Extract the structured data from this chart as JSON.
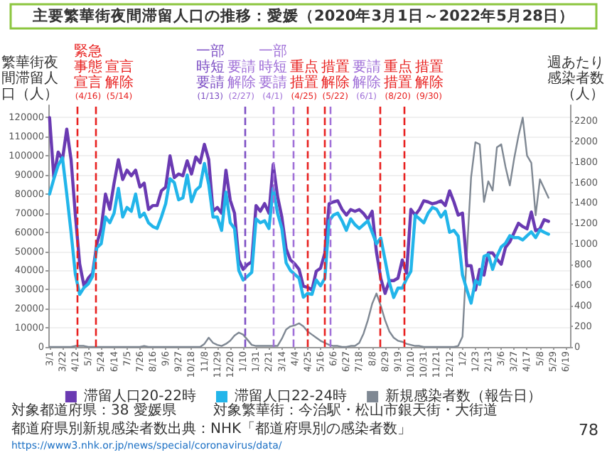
{
  "chart_data": {
    "type": "line",
    "title": "主要繁華街夜間滞留人口の推移：愛媛（2020年3月1日～2022年5月28日）",
    "ylabel": "繁華街夜間滞留人口（人）",
    "y2label": "週あたり感染者数（人）",
    "x": [
      "2020-03-01",
      "2020-03-08",
      "2020-03-15",
      "2020-03-22",
      "2020-03-29",
      "2020-04-05",
      "2020-04-12",
      "2020-04-19",
      "2020-04-26",
      "2020-05-03",
      "2020-05-10",
      "2020-05-17",
      "2020-05-24",
      "2020-05-31",
      "2020-06-07",
      "2020-06-14",
      "2020-06-21",
      "2020-06-28",
      "2020-07-05",
      "2020-07-12",
      "2020-07-19",
      "2020-07-26",
      "2020-08-02",
      "2020-08-09",
      "2020-08-16",
      "2020-08-23",
      "2020-08-30",
      "2020-09-06",
      "2020-09-13",
      "2020-09-20",
      "2020-09-27",
      "2020-10-04",
      "2020-10-11",
      "2020-10-18",
      "2020-10-25",
      "2020-11-01",
      "2020-11-08",
      "2020-11-15",
      "2020-11-22",
      "2020-11-29",
      "2020-12-06",
      "2020-12-13",
      "2020-12-20",
      "2020-12-27",
      "2021-01-03",
      "2021-01-10",
      "2021-01-17",
      "2021-01-24",
      "2021-01-31",
      "2021-02-07",
      "2021-02-14",
      "2021-02-21",
      "2021-02-28",
      "2021-03-07",
      "2021-03-14",
      "2021-03-21",
      "2021-03-28",
      "2021-04-04",
      "2021-04-11",
      "2021-04-18",
      "2021-04-25",
      "2021-05-02",
      "2021-05-09",
      "2021-05-16",
      "2021-05-23",
      "2021-05-30",
      "2021-06-06",
      "2021-06-13",
      "2021-06-20",
      "2021-06-27",
      "2021-07-04",
      "2021-07-11",
      "2021-07-18",
      "2021-07-25",
      "2021-08-01",
      "2021-08-08",
      "2021-08-15",
      "2021-08-22",
      "2021-08-29",
      "2021-09-05",
      "2021-09-12",
      "2021-09-19",
      "2021-09-26",
      "2021-10-03",
      "2021-10-10",
      "2021-10-17",
      "2021-10-24",
      "2021-10-31",
      "2021-11-07",
      "2021-11-14",
      "2021-11-21",
      "2021-11-28",
      "2021-12-05",
      "2021-12-12",
      "2021-12-19",
      "2021-12-26",
      "2022-01-02",
      "2022-01-09",
      "2022-01-16",
      "2022-01-23",
      "2022-01-30",
      "2022-02-06",
      "2022-02-13",
      "2022-02-20",
      "2022-02-27",
      "2022-03-06",
      "2022-03-13",
      "2022-03-20",
      "2022-03-27",
      "2022-04-03",
      "2022-04-10",
      "2022-04-17",
      "2022-04-24",
      "2022-05-01",
      "2022-05-08",
      "2022-05-15",
      "2022-05-22"
    ],
    "series": [
      {
        "name": "滞留人口20-22時",
        "color": "#6a3ab2",
        "values": [
          120000,
          88600,
          102000,
          98000,
          114000,
          98000,
          69000,
          43500,
          32000,
          36000,
          38600,
          54000,
          62000,
          80000,
          72000,
          85700,
          98000,
          87600,
          92500,
          89600,
          92500,
          83700,
          85700,
          72000,
          74000,
          74000,
          81700,
          83700,
          100000,
          88600,
          90500,
          89600,
          97400,
          90500,
          99400,
          96400,
          106000,
          98000,
          71000,
          73000,
          70000,
          92500,
          76800,
          70000,
          45500,
          40600,
          43100,
          44500,
          74000,
          71000,
          75000,
          70000,
          95500,
          78800,
          68000,
          51400,
          45500,
          43500,
          40600,
          31800,
          31200,
          29800,
          39600,
          41200,
          49200,
          75000,
          75900,
          76500,
          72000,
          69000,
          71900,
          71000,
          71900,
          69800,
          66800,
          71000,
          49600,
          35900,
          28000,
          34700,
          34700,
          36000,
          45500,
          38600,
          72000,
          69000,
          72000,
          76500,
          75900,
          74900,
          75500,
          76500,
          74000,
          81700,
          75900,
          69000,
          70000,
          42500,
          42500,
          29800,
          40600,
          37600,
          49200,
          49200,
          46000,
          43300,
          52100,
          55000,
          59800,
          64700,
          63000,
          61800,
          70600,
          60800,
          61800,
          66600,
          65700
        ]
      },
      {
        "name": "滞留人口22-24時",
        "color": "#22b5ea",
        "values": [
          80000,
          88000,
          95000,
          99000,
          80000,
          60000,
          38000,
          27500,
          31000,
          33000,
          37000,
          52000,
          54000,
          68000,
          65000,
          70000,
          83000,
          68000,
          73000,
          71000,
          80000,
          68000,
          70000,
          65000,
          63000,
          62000,
          68000,
          75000,
          88000,
          86000,
          77000,
          78000,
          90000,
          76000,
          82000,
          84000,
          96000,
          85000,
          68000,
          68000,
          61000,
          81000,
          65000,
          62000,
          40000,
          35000,
          37000,
          39000,
          67000,
          65000,
          66000,
          62000,
          83000,
          70000,
          62000,
          44000,
          40000,
          38000,
          36000,
          26000,
          28000,
          27500,
          35000,
          32000,
          36000,
          66000,
          69000,
          70000,
          66000,
          61000,
          67000,
          64000,
          62000,
          64000,
          66000,
          60000,
          54000,
          57000,
          45500,
          33700,
          25900,
          30800,
          30800,
          35700,
          39600,
          69000,
          67000,
          65000,
          70000,
          73000,
          72000,
          68000,
          71000,
          60000,
          61000,
          58000,
          37600,
          30000,
          22900,
          34700,
          32700,
          47400,
          48400,
          40600,
          47400,
          52300,
          54300,
          58200,
          57200,
          57200,
          56000,
          58200,
          60200,
          57200,
          61200,
          60000,
          59000
        ]
      },
      {
        "name": "新規感染者数（報告日）",
        "color": "#7f8893",
        "axis": "y2",
        "values": [
          0,
          0,
          0,
          0,
          0,
          0,
          10,
          10,
          10,
          0,
          0,
          0,
          0,
          0,
          0,
          0,
          0,
          0,
          0,
          0,
          0,
          0,
          10,
          0,
          0,
          0,
          0,
          0,
          0,
          0,
          0,
          0,
          0,
          0,
          0,
          0,
          30,
          90,
          40,
          20,
          10,
          30,
          60,
          110,
          140,
          120,
          70,
          20,
          10,
          10,
          10,
          10,
          10,
          10,
          80,
          170,
          200,
          210,
          230,
          200,
          150,
          120,
          90,
          60,
          40,
          20,
          10,
          10,
          0,
          0,
          10,
          10,
          40,
          130,
          260,
          420,
          520,
          400,
          260,
          150,
          90,
          60,
          50,
          30,
          20,
          10,
          10,
          0,
          0,
          0,
          0,
          0,
          0,
          0,
          0,
          10,
          100,
          900,
          1650,
          1990,
          1970,
          1410,
          1610,
          1520,
          1940,
          1970,
          1750,
          1570,
          1830,
          2050,
          2230,
          1860,
          1790,
          1280,
          1630,
          1540,
          1450
        ]
      }
    ],
    "xlim": [
      "2020-02-28",
      "2022-06-26"
    ],
    "xticks": [
      {
        "value": "2020-03-01",
        "label": "3/1"
      },
      {
        "value": "2020-03-22",
        "label": "3/22"
      },
      {
        "value": "2020-04-12",
        "label": "4/12"
      },
      {
        "value": "2020-05-03",
        "label": "5/3"
      },
      {
        "value": "2020-05-24",
        "label": "5/24"
      },
      {
        "value": "2020-06-14",
        "label": "6/14"
      },
      {
        "value": "2020-07-05",
        "label": "7/5"
      },
      {
        "value": "2020-07-26",
        "label": "7/26"
      },
      {
        "value": "2020-08-16",
        "label": "8/16"
      },
      {
        "value": "2020-09-06",
        "label": "9/6"
      },
      {
        "value": "2020-09-27",
        "label": "9/27"
      },
      {
        "value": "2020-10-18",
        "label": "10/18"
      },
      {
        "value": "2020-11-08",
        "label": "11/8"
      },
      {
        "value": "2020-11-29",
        "label": "11/29"
      },
      {
        "value": "2020-12-20",
        "label": "12/20"
      },
      {
        "value": "2021-01-10",
        "label": "1/10"
      },
      {
        "value": "2021-01-31",
        "label": "1/31"
      },
      {
        "value": "2021-02-21",
        "label": "2/21"
      },
      {
        "value": "2021-03-14",
        "label": "3/14"
      },
      {
        "value": "2021-04-04",
        "label": "4/4"
      },
      {
        "value": "2021-04-25",
        "label": "4/25"
      },
      {
        "value": "2021-05-16",
        "label": "5/16"
      },
      {
        "value": "2021-06-06",
        "label": "6/6"
      },
      {
        "value": "2021-06-27",
        "label": "6/27"
      },
      {
        "value": "2021-07-18",
        "label": "7/18"
      },
      {
        "value": "2021-08-08",
        "label": "8/8"
      },
      {
        "value": "2021-08-29",
        "label": "8/29"
      },
      {
        "value": "2021-09-19",
        "label": "9/19"
      },
      {
        "value": "2021-10-10",
        "label": "10/10"
      },
      {
        "value": "2021-10-31",
        "label": "10/31"
      },
      {
        "value": "2021-11-21",
        "label": "11/21"
      },
      {
        "value": "2021-12-12",
        "label": "12/12"
      },
      {
        "value": "2022-01-02",
        "label": "1/2"
      },
      {
        "value": "2022-01-23",
        "label": "1/23"
      },
      {
        "value": "2022-02-13",
        "label": "2/13"
      },
      {
        "value": "2022-03-06",
        "label": "3/6"
      },
      {
        "value": "2022-03-27",
        "label": "3/27"
      },
      {
        "value": "2022-04-17",
        "label": "4/17"
      },
      {
        "value": "2022-05-08",
        "label": "5/8"
      },
      {
        "value": "2022-05-29",
        "label": "5/29"
      },
      {
        "value": "2022-06-19",
        "label": "6/19"
      }
    ],
    "ylim": [
      0,
      126500
    ],
    "yticks": [
      0,
      10000,
      20000,
      30000,
      40000,
      50000,
      60000,
      70000,
      80000,
      90000,
      100000,
      110000,
      120000
    ],
    "y2lim": [
      0,
      2350
    ],
    "y2ticks": [
      0,
      200,
      400,
      600,
      800,
      1000,
      1200,
      1400,
      1600,
      1800,
      2000,
      2200
    ],
    "ref_lines": [
      {
        "axis": "x",
        "value": "2020-04-16",
        "label": "緊急事態宣言(4/16)",
        "color": "#e8201f",
        "line_style": "dashed"
      },
      {
        "axis": "x",
        "value": "2020-05-14",
        "label": "宣言解除(5/14)",
        "color": "#e8201f",
        "line_style": "dashed"
      },
      {
        "axis": "x",
        "value": "2021-01-13",
        "label": "一部時短要請(1/13)",
        "color": "#7d4fc4",
        "line_style": "dashed"
      },
      {
        "axis": "x",
        "value": "2021-02-27",
        "label": "要請解除(2/27)",
        "color": "#a070d8",
        "line_style": "dashed"
      },
      {
        "axis": "x",
        "value": "2021-04-01",
        "label": "一部時短要請(4/1)",
        "color": "#a070d8",
        "line_style": "dashed"
      },
      {
        "axis": "x",
        "value": "2021-04-25",
        "label": "重点措置(4/25)",
        "color": "#e8201f",
        "line_style": "dashed"
      },
      {
        "axis": "x",
        "value": "2021-05-22",
        "label": "措置解除(5/22)",
        "color": "#e8201f",
        "line_style": "dashed"
      },
      {
        "axis": "x",
        "value": "2021-06-01",
        "label": "要請解除(6/1)",
        "color": "#a070d8",
        "line_style": "dashed"
      },
      {
        "axis": "x",
        "value": "2021-08-20",
        "label": "重点措置(8/20)",
        "color": "#e8201f",
        "line_style": "dashed"
      },
      {
        "axis": "x",
        "value": "2021-09-30",
        "label": "措置解除(9/30)",
        "color": "#e8201f",
        "line_style": "dashed"
      }
    ],
    "grid": "y",
    "legend": "bottom",
    "annotations": [
      "対象都道府県：38 愛媛県",
      "対象繁華街：今治駅・松山市銀天街・大街道",
      "都道府県別新規感染者数出典：NHK「都道府県別の感染者数」",
      "https://www3.nhk.or.jp/news/special/coronavirus/data/",
      "78"
    ]
  }
}
